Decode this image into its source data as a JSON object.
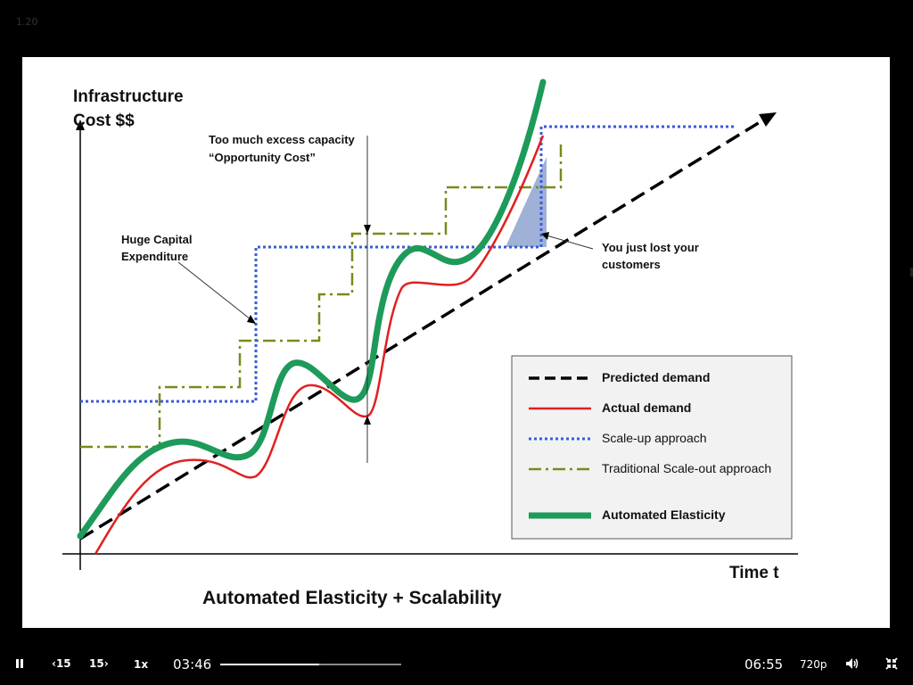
{
  "player": {
    "speed_badge": "1.20",
    "current_time": "03:46",
    "total_time": "06:55",
    "quality": "720p",
    "playback_rate": "1x",
    "rewind_label": "15",
    "forward_label": "15",
    "progress": 0.545
  },
  "slide": {
    "title": "Automated Elasticity + Scalability",
    "y_axis_label_line1": "Infrastructure",
    "y_axis_label_line2": "Cost $$",
    "x_axis_label": "Time t",
    "annotation_capex_line1": "Huge Capital",
    "annotation_capex_line2": "Expenditure",
    "annotation_excess_line1": "Too much excess capacity",
    "annotation_excess_line2": "“Opportunity Cost”",
    "annotation_lost_line1": "You just lost your",
    "annotation_lost_line2": "customers",
    "legend": [
      {
        "label": "Predicted demand",
        "color": "#000000"
      },
      {
        "label": "Actual demand",
        "color": "#e02020"
      },
      {
        "label": "Scale-up approach",
        "color": "#3a5bd9"
      },
      {
        "label": "Traditional Scale-out approach",
        "color": "#7a8a1a"
      },
      {
        "label": "Automated Elasticity",
        "color": "#1e9a5a"
      }
    ]
  },
  "icons": {
    "pause": "pause-icon",
    "rewind": "rewind-15-icon",
    "forward": "forward-15-icon",
    "volume": "volume-icon",
    "exit_fullscreen": "exit-fullscreen-icon"
  }
}
